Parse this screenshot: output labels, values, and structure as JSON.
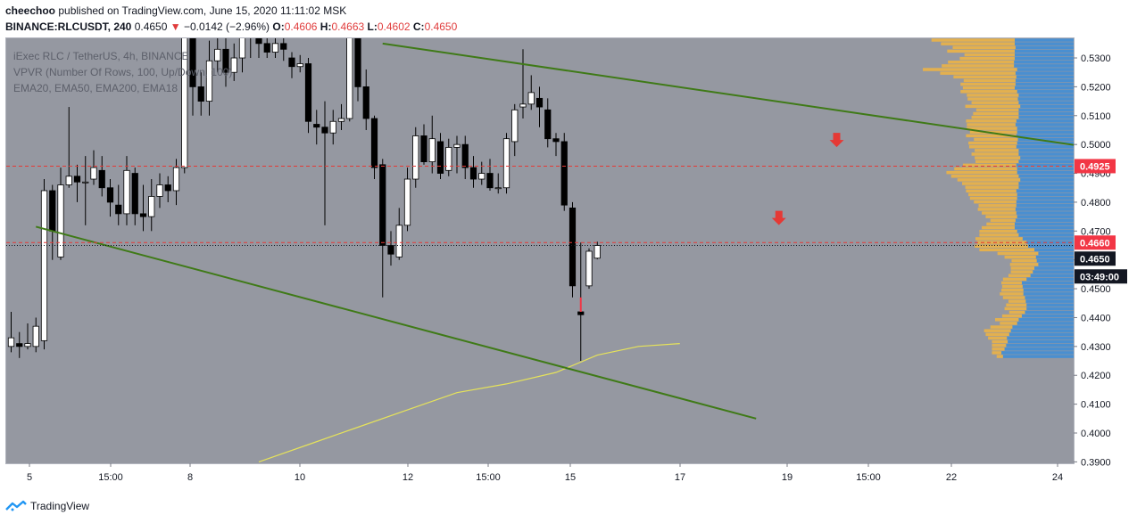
{
  "header": {
    "publisher": "cheechoo",
    "published_text": "published on TradingView.com, June 15, 2020 11:11:02 MSK",
    "symbol": "BINANCE:RLCUSDT, 240",
    "last": "0.4650",
    "change_arrow": "▼",
    "change": "−0.0142 (−2.96%)",
    "o_label": "O:",
    "o": "0.4606",
    "h_label": "H:",
    "h": "0.4663",
    "l_label": "L:",
    "l": "0.4602",
    "c_label": "C:",
    "c": "0.4650"
  },
  "legend": {
    "line1": "iExec RLC / TetherUS, 4h, BINANCE",
    "line2": "VPVR (Number Of Rows, 100, Up/Down, 100)",
    "line3": "EMA20, EMA50, EMA200, EMA18"
  },
  "footer": {
    "brand": "TradingView"
  },
  "colors": {
    "background": "#9598a1",
    "up_candle": "#ffffff",
    "down_candle": "#000000",
    "trendline": "#3f7a17",
    "ema": "#e6e35a",
    "vp_up": "#4a8fd0",
    "vp_down": "#e3b04f",
    "marker_red": "#f23645"
  },
  "chart_data": {
    "type": "candlestick",
    "y_axis": {
      "range": [
        0.3895,
        0.5368
      ],
      "tick_labels": [
        "0.3900",
        "0.4000",
        "0.4100",
        "0.4200",
        "0.4300",
        "0.4400",
        "0.4500",
        "0.4600",
        "0.4700",
        "0.4800",
        "0.4900",
        "0.5000",
        "0.5100",
        "0.5200",
        "0.5300"
      ]
    },
    "x_axis": {
      "tick_labels": [
        "5",
        "15:00",
        "8",
        "10",
        "12",
        "15:00",
        "15",
        "17",
        "19",
        "15:00",
        "22",
        "24"
      ]
    },
    "price_labels": [
      {
        "value": "0.4925",
        "style": "red"
      },
      {
        "value": "0.4660",
        "style": "red"
      },
      {
        "value": "0.4650",
        "style": "dark"
      },
      {
        "value": "03:49:00",
        "style": "dark"
      }
    ],
    "horizontal_levels": [
      0.4925,
      0.466
    ],
    "candles": [
      [
        0.43,
        0.433,
        0.442,
        0.428
      ],
      [
        0.431,
        0.43,
        0.435,
        0.426
      ],
      [
        0.43,
        0.431,
        0.438,
        0.429
      ],
      [
        0.43,
        0.437,
        0.44,
        0.428
      ],
      [
        0.432,
        0.484,
        0.488,
        0.429
      ],
      [
        0.484,
        0.47,
        0.486,
        0.46
      ],
      [
        0.461,
        0.486,
        0.492,
        0.46
      ],
      [
        0.486,
        0.489,
        0.513,
        0.485
      ],
      [
        0.489,
        0.487,
        0.493,
        0.48
      ],
      [
        0.487,
        0.487,
        0.496,
        0.472
      ],
      [
        0.488,
        0.492,
        0.498,
        0.486
      ],
      [
        0.491,
        0.485,
        0.496,
        0.482
      ],
      [
        0.485,
        0.48,
        0.488,
        0.475
      ],
      [
        0.479,
        0.476,
        0.486,
        0.472
      ],
      [
        0.476,
        0.491,
        0.496,
        0.472
      ],
      [
        0.49,
        0.476,
        0.492,
        0.472
      ],
      [
        0.476,
        0.475,
        0.486,
        0.47
      ],
      [
        0.475,
        0.482,
        0.488,
        0.47
      ],
      [
        0.482,
        0.486,
        0.49,
        0.478
      ],
      [
        0.486,
        0.484,
        0.489,
        0.48
      ],
      [
        0.484,
        0.492,
        0.495,
        0.479
      ],
      [
        0.492,
        0.54,
        0.545,
        0.49
      ],
      [
        0.538,
        0.52,
        0.542,
        0.51
      ],
      [
        0.52,
        0.515,
        0.525,
        0.51
      ],
      [
        0.515,
        0.529,
        0.536,
        0.51
      ],
      [
        0.529,
        0.533,
        0.538,
        0.525
      ],
      [
        0.533,
        0.525,
        0.538,
        0.52
      ],
      [
        0.525,
        0.53,
        0.535,
        0.522
      ],
      [
        0.53,
        0.54,
        0.545,
        0.525
      ],
      [
        0.54,
        0.538,
        0.544,
        0.53
      ],
      [
        0.538,
        0.535,
        0.542,
        0.53
      ],
      [
        0.535,
        0.532,
        0.54,
        0.53
      ],
      [
        0.532,
        0.535,
        0.542,
        0.53
      ],
      [
        0.535,
        0.533,
        0.538,
        0.529
      ],
      [
        0.53,
        0.527,
        0.532,
        0.523
      ],
      [
        0.527,
        0.528,
        0.531,
        0.525
      ],
      [
        0.528,
        0.508,
        0.53,
        0.504
      ],
      [
        0.507,
        0.506,
        0.512,
        0.5
      ],
      [
        0.506,
        0.504,
        0.515,
        0.472
      ],
      [
        0.504,
        0.508,
        0.512,
        0.5
      ],
      [
        0.508,
        0.509,
        0.514,
        0.505
      ],
      [
        0.509,
        0.541,
        0.545,
        0.508
      ],
      [
        0.54,
        0.52,
        0.542,
        0.515
      ],
      [
        0.52,
        0.509,
        0.526,
        0.505
      ],
      [
        0.509,
        0.492,
        0.51,
        0.488
      ],
      [
        0.493,
        0.465,
        0.495,
        0.447
      ],
      [
        0.465,
        0.462,
        0.47,
        0.458
      ],
      [
        0.461,
        0.472,
        0.478,
        0.46
      ],
      [
        0.472,
        0.488,
        0.492,
        0.47
      ],
      [
        0.488,
        0.503,
        0.506,
        0.485
      ],
      [
        0.503,
        0.494,
        0.507,
        0.493
      ],
      [
        0.494,
        0.502,
        0.51,
        0.49
      ],
      [
        0.501,
        0.49,
        0.504,
        0.488
      ],
      [
        0.491,
        0.499,
        0.502,
        0.489
      ],
      [
        0.499,
        0.5,
        0.503,
        0.49
      ],
      [
        0.5,
        0.492,
        0.503,
        0.488
      ],
      [
        0.492,
        0.488,
        0.496,
        0.485
      ],
      [
        0.488,
        0.49,
        0.494,
        0.486
      ],
      [
        0.49,
        0.485,
        0.495,
        0.484
      ],
      [
        0.485,
        0.485,
        0.49,
        0.483
      ],
      [
        0.485,
        0.502,
        0.504,
        0.483
      ],
      [
        0.501,
        0.512,
        0.514,
        0.496
      ],
      [
        0.513,
        0.514,
        0.533,
        0.509
      ],
      [
        0.514,
        0.518,
        0.524,
        0.512
      ],
      [
        0.516,
        0.513,
        0.52,
        0.506
      ],
      [
        0.512,
        0.502,
        0.516,
        0.499
      ],
      [
        0.502,
        0.501,
        0.504,
        0.496
      ],
      [
        0.501,
        0.479,
        0.504,
        0.477
      ],
      [
        0.478,
        0.451,
        0.48,
        0.447
      ],
      [
        0.442,
        0.441,
        0.466,
        0.425
      ],
      [
        0.451,
        0.463,
        0.464,
        0.45
      ],
      [
        0.4606,
        0.465,
        0.4663,
        0.4602
      ]
    ],
    "trendlines": [
      {
        "from": [
          3,
          0.4715
        ],
        "to": [
          64,
          0.425
        ],
        "extends_right_to_price": 0.405
      },
      {
        "from": [
          45,
          0.535
        ],
        "to": [
          145,
          0.493
        ]
      }
    ],
    "ema_curve": [
      [
        30,
        0.39
      ],
      [
        36,
        0.396
      ],
      [
        42,
        0.402
      ],
      [
        48,
        0.408
      ],
      [
        54,
        0.414
      ],
      [
        60,
        0.417
      ],
      [
        66,
        0.421
      ],
      [
        71,
        0.427
      ],
      [
        76,
        0.43
      ],
      [
        81,
        0.431
      ]
    ],
    "arrows": [
      {
        "bar": 100,
        "price": 0.5,
        "direction": "down"
      },
      {
        "bar": 93,
        "price": 0.473,
        "direction": "down"
      }
    ],
    "volume_profile": {
      "price_from": 0.4258,
      "price_to": 0.538,
      "rows_up": [
        90,
        92,
        88,
        86,
        84,
        85,
        82,
        80,
        78,
        72,
        70,
        66,
        62,
        60,
        60,
        61,
        62,
        64,
        64,
        65,
        66,
        60,
        55,
        52,
        50,
        45,
        47,
        48,
        45,
        50,
        58,
        60,
        65,
        70,
        72,
        75,
        75,
        74,
        72,
        73,
        74,
        73,
        73,
        72,
        72,
        73,
        70,
        70,
        68,
        70,
        72,
        72,
        73,
        70,
        68,
        70,
        70,
        73,
        72,
        71,
        73,
        72,
        72,
        74,
        73,
        70,
        70,
        70,
        68,
        70,
        71,
        70,
        72,
        75,
        74,
        74,
        73,
        74,
        72,
        76,
        76,
        75,
        75,
        75,
        74,
        75,
        75,
        75
      ],
      "rows_down": [
        8,
        12,
        16,
        18,
        20,
        24,
        30,
        34,
        28,
        22,
        30,
        25,
        20,
        28,
        26,
        22,
        28,
        30,
        28,
        26,
        26,
        30,
        28,
        28,
        30,
        36,
        32,
        40,
        52,
        70,
        68,
        63,
        60,
        50,
        48,
        42,
        36,
        32,
        40,
        44,
        48,
        48,
        54,
        60,
        62,
        64,
        68,
        72,
        80,
        86,
        90,
        80,
        68,
        55,
        58,
        60,
        56,
        60,
        62,
        56,
        64,
        60,
        64,
        62,
        64,
        60,
        58,
        54,
        70,
        60,
        64,
        66,
        72,
        66,
        70,
        66,
        80,
        96,
        120,
        92,
        84,
        70,
        64,
        86,
        80,
        94,
        106,
        116
      ]
    }
  }
}
